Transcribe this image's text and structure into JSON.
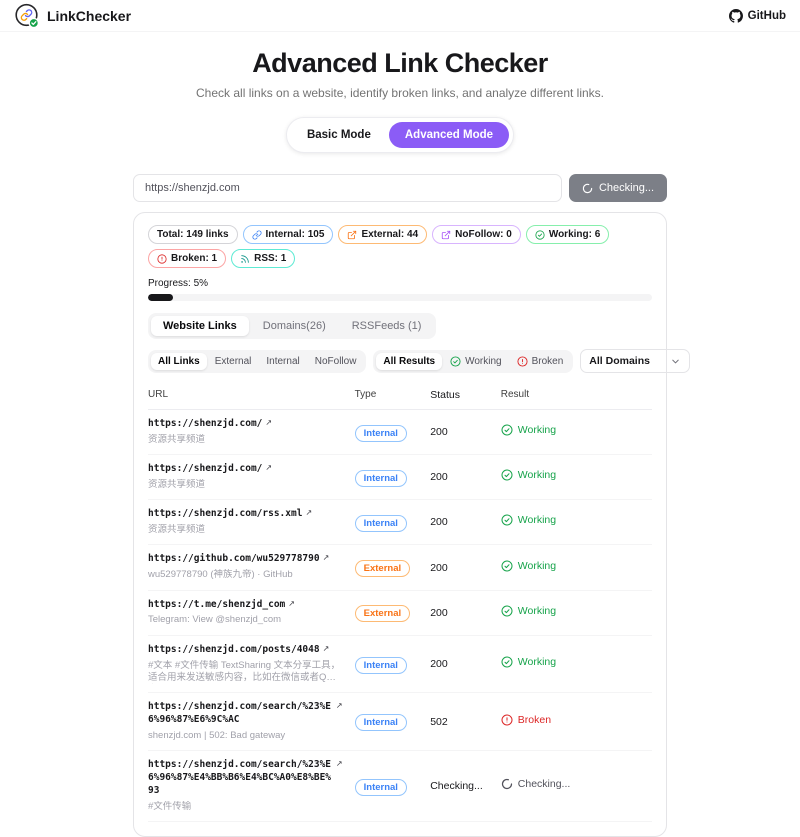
{
  "header": {
    "brand": "LinkChecker",
    "github": "GitHub"
  },
  "hero": {
    "title": "Advanced Link Checker",
    "subtitle": "Check all links on a website, identify broken links, and analyze different links."
  },
  "mode_toggle": [
    {
      "label": "Basic Mode",
      "active": false
    },
    {
      "label": "Advanced Mode",
      "active": true
    }
  ],
  "search": {
    "value": "https://shenzjd.com",
    "button": "Checking..."
  },
  "colors": {
    "accent_purple": "#8b5cf6",
    "internal_blue": "#3b82f6",
    "external_orange": "#f97316",
    "nofollow_purple": "#a855f7",
    "working_green": "#16a34a",
    "broken_red": "#dc2626",
    "rss_teal": "#0d9488",
    "progress_fill": "#18181b"
  },
  "stats": [
    {
      "label": "Total: 149 links",
      "icon": null,
      "icon_color": null,
      "border": "#d4d4d8"
    },
    {
      "label": "Internal: 105",
      "icon": "link-icon",
      "icon_color": "#3b82f6",
      "border": "#93c5fd"
    },
    {
      "label": "External: 44",
      "icon": "external-link-icon",
      "icon_color": "#f97316",
      "border": "#fdba74"
    },
    {
      "label": "NoFollow: 0",
      "icon": "external-link-icon",
      "icon_color": "#a855f7",
      "border": "#d8b4fe"
    },
    {
      "label": "Working: 6",
      "icon": "check-circle-icon",
      "icon_color": "#16a34a",
      "border": "#86efac"
    },
    {
      "label": "Broken: 1",
      "icon": "alert-circle-icon",
      "icon_color": "#dc2626",
      "border": "#fca5a5"
    },
    {
      "label": "RSS: 1",
      "icon": "rss-icon",
      "icon_color": "#0d9488",
      "border": "#5eead4"
    }
  ],
  "progress": {
    "label": "Progress: 5%",
    "percent": 5
  },
  "tabs": [
    {
      "label": "Website Links",
      "active": true
    },
    {
      "label": "Domains(26)",
      "active": false
    },
    {
      "label": "RSSFeeds (1)",
      "active": false
    }
  ],
  "filters": {
    "link_types": [
      {
        "label": "All Links",
        "active": true
      },
      {
        "label": "External",
        "active": false
      },
      {
        "label": "Internal",
        "active": false
      },
      {
        "label": "NoFollow",
        "active": false
      }
    ],
    "results": [
      {
        "label": "All Results",
        "active": true,
        "icon": null,
        "icon_color": null
      },
      {
        "label": "Working",
        "active": false,
        "icon": "check-circle-icon",
        "icon_color": "#16a34a"
      },
      {
        "label": "Broken",
        "active": false,
        "icon": "alert-circle-icon",
        "icon_color": "#dc2626"
      }
    ],
    "domain_select": "All Domains"
  },
  "table": {
    "columns": [
      "URL",
      "Type",
      "Status",
      "Result"
    ],
    "rows": [
      {
        "url": "https://shenzjd.com/",
        "title": "资源共享频道",
        "type": "Internal",
        "status": "200",
        "result": "Working",
        "result_kind": "working"
      },
      {
        "url": "https://shenzjd.com/",
        "title": "资源共享频道",
        "type": "Internal",
        "status": "200",
        "result": "Working",
        "result_kind": "working"
      },
      {
        "url": "https://shenzjd.com/rss.xml",
        "title": "资源共享频道",
        "type": "Internal",
        "status": "200",
        "result": "Working",
        "result_kind": "working"
      },
      {
        "url": "https://github.com/wu529778790",
        "title": "wu529778790 (神族九帝) · GitHub",
        "type": "External",
        "status": "200",
        "result": "Working",
        "result_kind": "working"
      },
      {
        "url": "https://t.me/shenzjd_com",
        "title": "Telegram: View @shenzjd_com",
        "type": "External",
        "status": "200",
        "result": "Working",
        "result_kind": "working"
      },
      {
        "url": "https://shenzjd.com/posts/4048",
        "title": "#文本 #文件传输 TextSharing 文本分享工具，适合用来发送敏感内容，比如在微信或者QQ上...",
        "type": "Internal",
        "status": "200",
        "result": "Working",
        "result_kind": "working"
      },
      {
        "url": "https://shenzjd.com/search/%23%E6%96%87%E6%9C%AC",
        "title": "shenzjd.com | 502: Bad gateway",
        "type": "Internal",
        "status": "502",
        "result": "Broken",
        "result_kind": "broken"
      },
      {
        "url": "https://shenzjd.com/search/%23%E6%96%87%E4%BB%B6%E4%BC%A0%E8%BE%93",
        "title": "#文件传输",
        "type": "Internal",
        "status": "Checking...",
        "result": "Checking...",
        "result_kind": "checking"
      }
    ]
  }
}
